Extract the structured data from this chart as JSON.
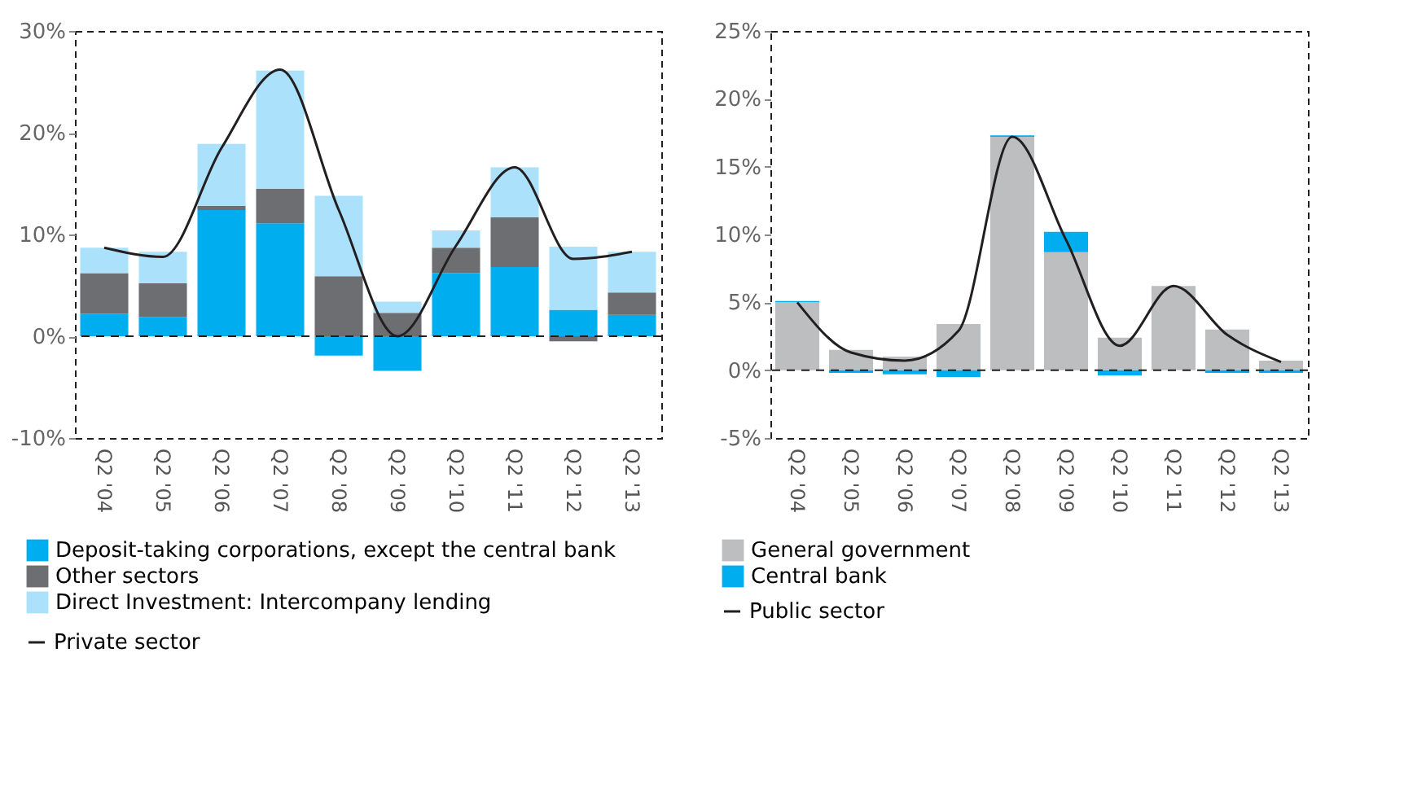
{
  "chart_data": [
    {
      "type": "bar",
      "stacked": true,
      "categories": [
        "Q2 '04",
        "Q2 '05",
        "Q2 '06",
        "Q2 '07",
        "Q2 '08",
        "Q2 '09",
        "Q2 '10",
        "Q2 '11",
        "Q2 '12",
        "Q2 '13"
      ],
      "series": [
        {
          "name": "Deposit-taking corporations, except the central bank",
          "color": "#00aeef",
          "values": [
            2.2,
            1.9,
            12.4,
            11.1,
            -1.9,
            -3.4,
            6.2,
            6.8,
            2.6,
            2.1
          ]
        },
        {
          "name": "Other sectors",
          "color": "#6d6e71",
          "values": [
            4.0,
            3.3,
            0.4,
            3.4,
            5.9,
            2.3,
            2.5,
            4.9,
            -0.5,
            2.2
          ]
        },
        {
          "name": "Direct Investment: Intercompany lending",
          "color": "#abe1fa",
          "values": [
            2.5,
            3.1,
            6.1,
            11.6,
            7.9,
            1.1,
            1.7,
            4.9,
            6.2,
            4.0
          ]
        },
        {
          "name": "Private sector",
          "type": "line",
          "color": "#231f20",
          "line_style": "solid",
          "values": [
            8.7,
            7.8,
            18.5,
            26.2,
            12.4,
            0.0,
            8.9,
            16.6,
            7.6,
            8.3
          ]
        }
      ],
      "ylim": [
        -10,
        30
      ],
      "yticks": [
        {
          "value": -10,
          "label": "-10%"
        },
        {
          "value": 0,
          "label": "0%"
        },
        {
          "value": 10,
          "label": "10%"
        },
        {
          "value": 20,
          "label": "20%"
        },
        {
          "value": 30,
          "label": "30%"
        }
      ],
      "ref_lines": [
        {
          "axis": "y",
          "value": 0,
          "line_style": "dashed",
          "color": "#231f20"
        }
      ],
      "grid": false,
      "legend": "bottom"
    },
    {
      "type": "bar",
      "stacked": true,
      "categories": [
        "Q2 '04",
        "Q2 '05",
        "Q2 '06",
        "Q2 '07",
        "Q2 '08",
        "Q2 '09",
        "Q2 '10",
        "Q2 '11",
        "Q2 '12",
        "Q2 '13"
      ],
      "series": [
        {
          "name": "General government",
          "color": "#bcbec0",
          "values": [
            5.0,
            1.5,
            1.0,
            3.4,
            17.2,
            8.7,
            2.4,
            6.2,
            3.0,
            0.7
          ]
        },
        {
          "name": "Central bank",
          "color": "#00aeef",
          "values": [
            0.1,
            -0.2,
            -0.3,
            -0.5,
            0.1,
            1.5,
            -0.4,
            null,
            -0.2,
            -0.2
          ]
        },
        {
          "name": "Public sector",
          "type": "line",
          "color": "#231f20",
          "line_style": "solid",
          "values": [
            5.0,
            1.3,
            0.7,
            2.9,
            17.2,
            9.6,
            1.8,
            6.2,
            2.6,
            0.6
          ]
        }
      ],
      "ylim": [
        -5,
        25
      ],
      "yticks": [
        {
          "value": -5,
          "label": "-5%"
        },
        {
          "value": 0,
          "label": "0%"
        },
        {
          "value": 5,
          "label": "5%"
        },
        {
          "value": 10,
          "label": "10%"
        },
        {
          "value": 15,
          "label": "15%"
        },
        {
          "value": 20,
          "label": "20%"
        },
        {
          "value": 25,
          "label": "25%"
        }
      ],
      "ref_lines": [
        {
          "axis": "y",
          "value": 0,
          "line_style": "dashed",
          "color": "#231f20"
        }
      ],
      "grid": false,
      "legend": "bottom"
    }
  ]
}
